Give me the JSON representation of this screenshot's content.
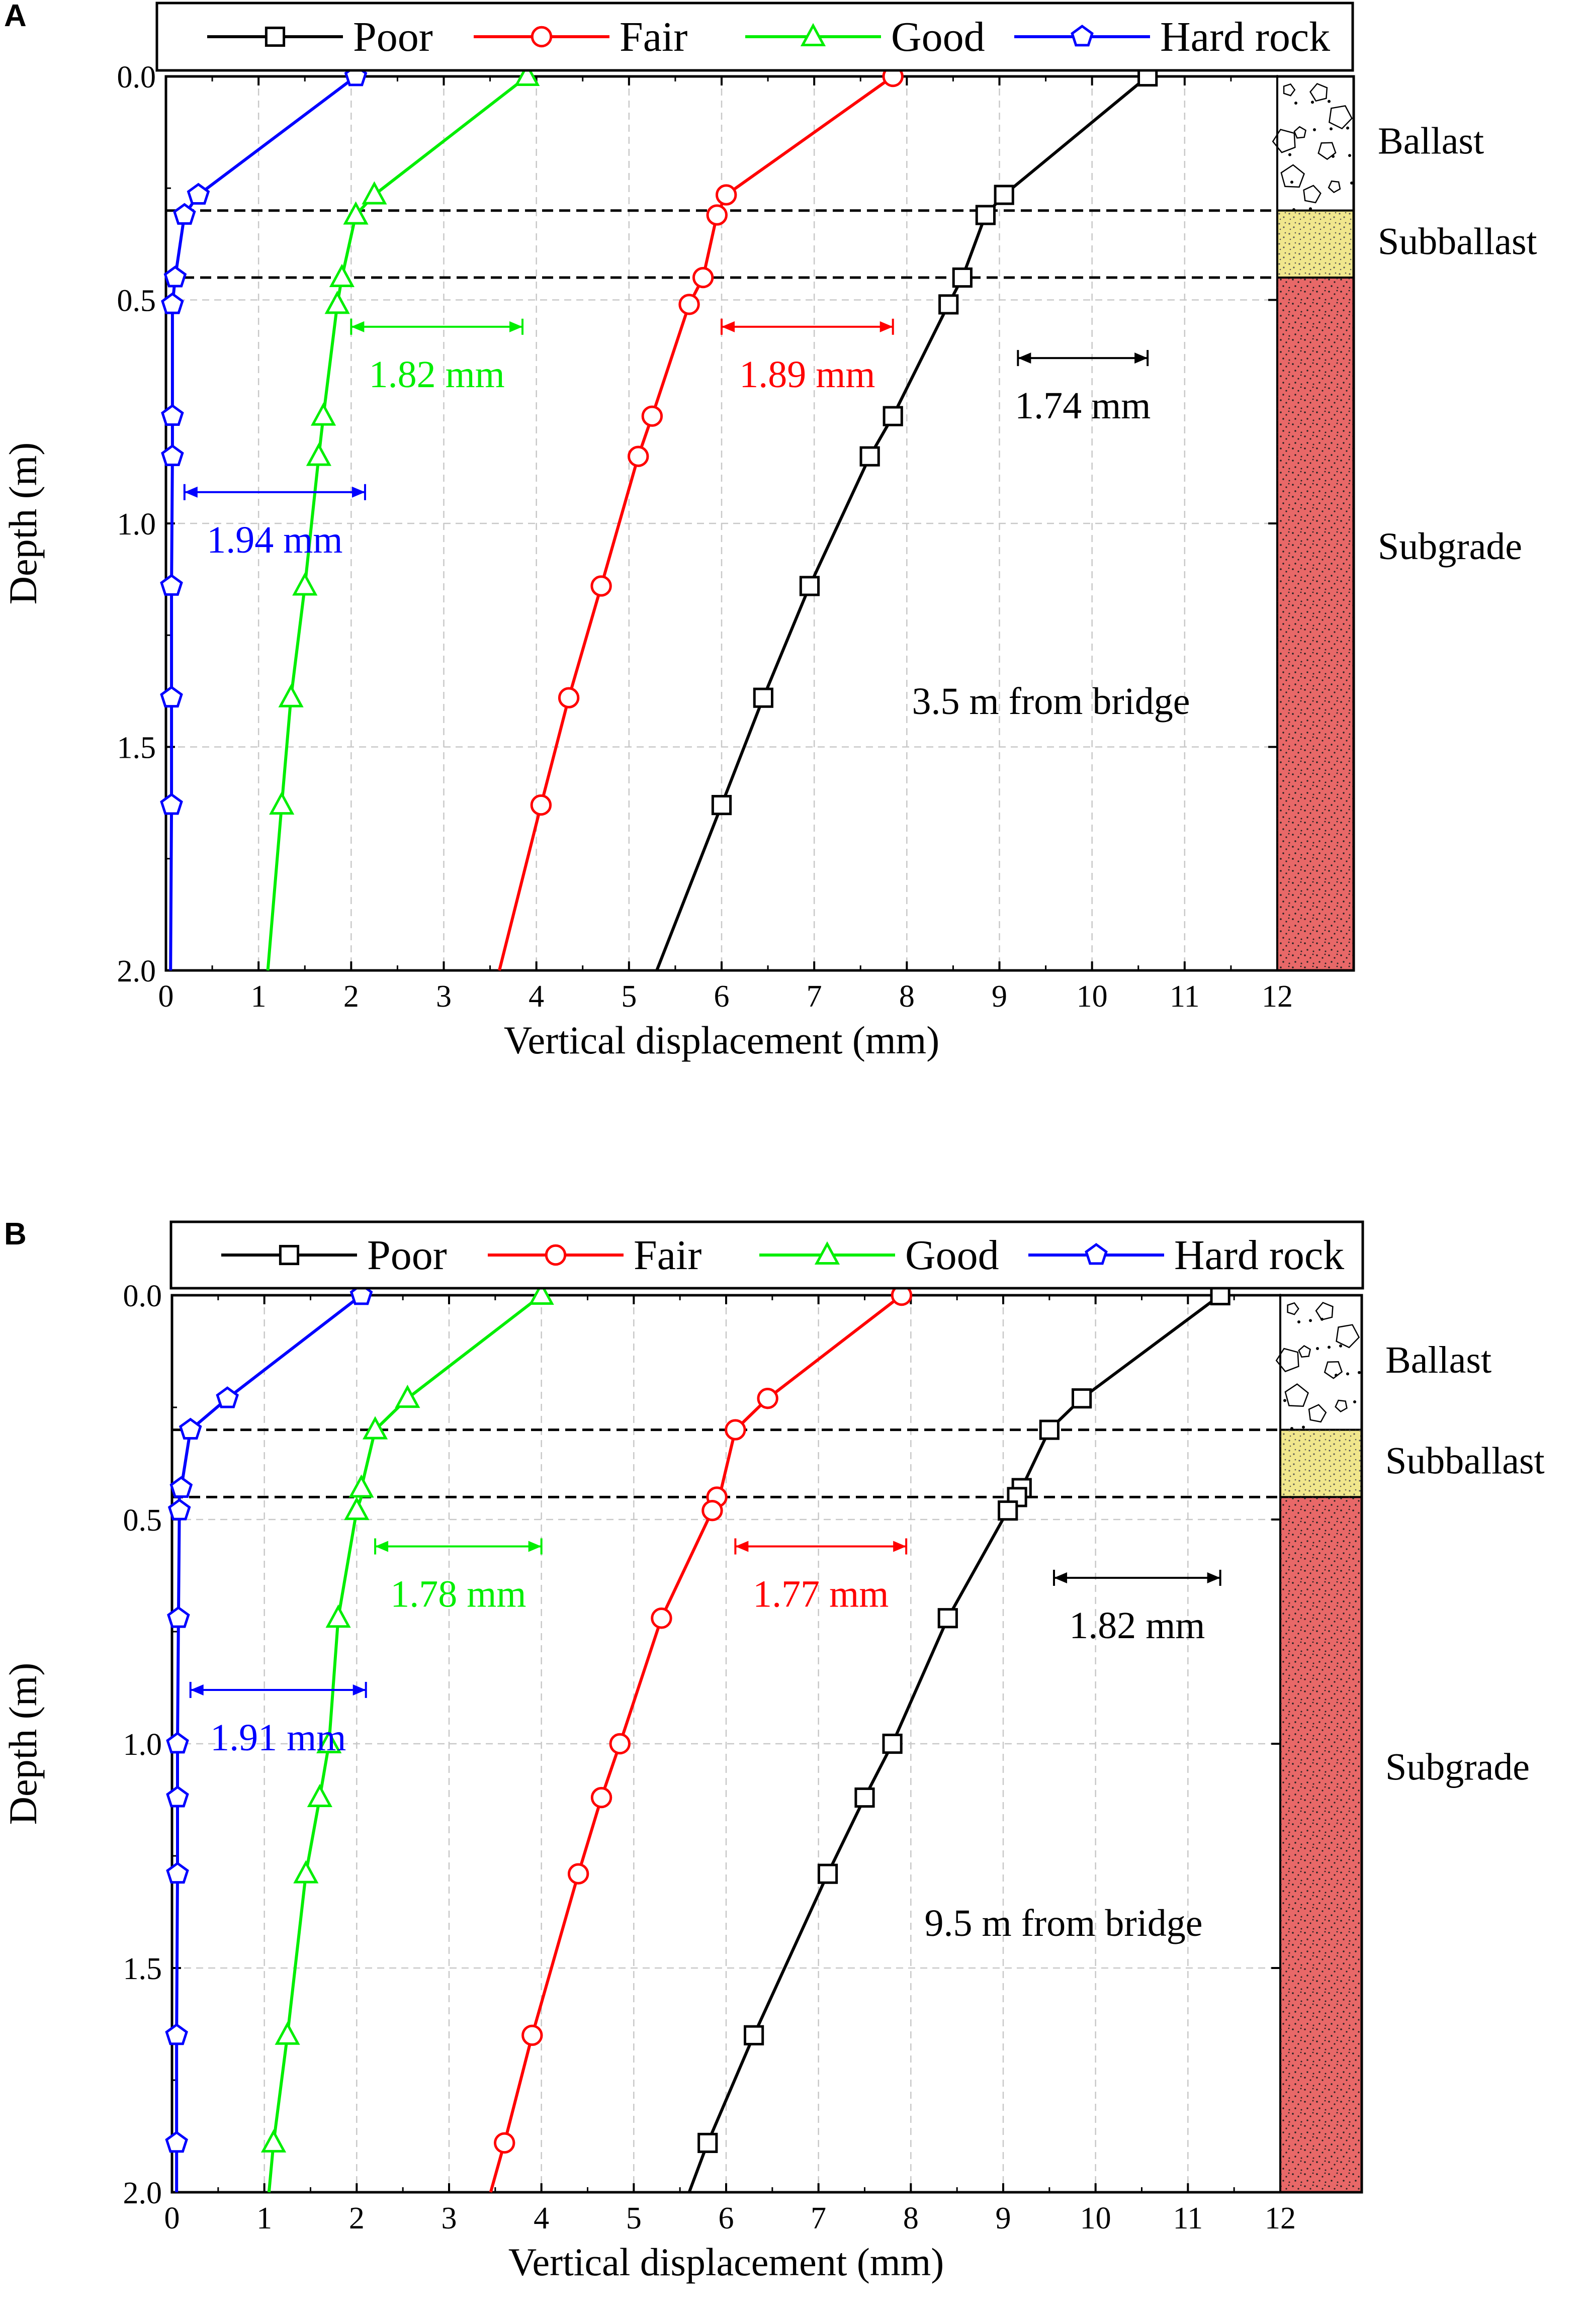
{
  "chart_data": [
    {
      "panel": "A",
      "type": "line",
      "xlabel": "Vertical displacement (mm)",
      "ylabel": "Depth (m)",
      "xlim": [
        0,
        12
      ],
      "ylim": [
        2.0,
        0.0
      ],
      "xticks": [
        "0",
        "1",
        "2",
        "3",
        "4",
        "5",
        "6",
        "7",
        "8",
        "9",
        "10",
        "11",
        "12"
      ],
      "yticks": [
        "0.0",
        "0.5",
        "1.0",
        "1.5",
        "2.0"
      ],
      "grid": true,
      "legend_position": "top",
      "annotation": "3.5 m from bridge",
      "layer_boundaries": [
        0.3,
        0.45
      ],
      "layers": [
        {
          "name": "Ballast",
          "top": 0.0,
          "bottom": 0.3,
          "color": "#ffffff"
        },
        {
          "name": "Subballast",
          "top": 0.3,
          "bottom": 0.45,
          "color": "#f0e68c"
        },
        {
          "name": "Subgrade",
          "top": 0.45,
          "bottom": 2.0,
          "color": "#e86868"
        }
      ],
      "series": [
        {
          "name": "Poor",
          "color": "#000000",
          "marker": "square",
          "x": [
            10.6,
            9.05,
            8.85,
            8.6,
            8.45,
            7.85,
            7.6,
            6.95,
            6.45,
            6.0,
            5.3
          ],
          "y": [
            0.0,
            0.265,
            0.31,
            0.45,
            0.51,
            0.76,
            0.85,
            1.14,
            1.39,
            1.63,
            2.0
          ],
          "marked": [
            true,
            true,
            true,
            true,
            true,
            true,
            true,
            true,
            true,
            true,
            false
          ]
        },
        {
          "name": "Fair",
          "color": "#ff0000",
          "marker": "circle",
          "x": [
            7.85,
            6.05,
            5.95,
            5.8,
            5.65,
            5.25,
            5.1,
            4.7,
            4.35,
            4.05,
            3.6
          ],
          "y": [
            0.0,
            0.265,
            0.31,
            0.45,
            0.51,
            0.76,
            0.85,
            1.14,
            1.39,
            1.63,
            2.0
          ],
          "marked": [
            true,
            true,
            true,
            true,
            true,
            true,
            true,
            true,
            true,
            true,
            false
          ]
        },
        {
          "name": "Good",
          "color": "#00ee00",
          "marker": "triangle",
          "x": [
            3.9,
            2.25,
            2.05,
            1.9,
            1.85,
            1.7,
            1.65,
            1.5,
            1.35,
            1.25,
            1.1
          ],
          "y": [
            0.0,
            0.265,
            0.31,
            0.45,
            0.51,
            0.76,
            0.85,
            1.14,
            1.39,
            1.63,
            2.0
          ],
          "marked": [
            true,
            true,
            true,
            true,
            true,
            true,
            true,
            true,
            true,
            true,
            false
          ]
        },
        {
          "name": "Hard rock",
          "color": "#0000ff",
          "marker": "pentagon",
          "x": [
            2.05,
            0.35,
            0.2,
            0.1,
            0.07,
            0.07,
            0.07,
            0.06,
            0.06,
            0.06,
            0.05
          ],
          "y": [
            0.0,
            0.265,
            0.31,
            0.45,
            0.51,
            0.76,
            0.85,
            1.14,
            1.39,
            1.63,
            2.0
          ],
          "marked": [
            true,
            true,
            true,
            true,
            true,
            true,
            true,
            true,
            true,
            true,
            false
          ]
        }
      ],
      "dimension_arrows": [
        {
          "label": "1.82 mm",
          "x1": 2.0,
          "x2": 3.85,
          "y": 0.56,
          "color": "#00ee00"
        },
        {
          "label": "1.89 mm",
          "x1": 6.0,
          "x2": 7.85,
          "y": 0.56,
          "color": "#ff0000"
        },
        {
          "label": "1.74 mm",
          "x1": 9.2,
          "x2": 10.6,
          "y": 0.63,
          "color": "#000000"
        },
        {
          "label": "1.94 mm",
          "x1": 0.2,
          "x2": 2.15,
          "y": 0.93,
          "color": "#0000ff"
        }
      ]
    },
    {
      "panel": "B",
      "type": "line",
      "xlabel": "Vertical displacement (mm)",
      "ylabel": "Depth (m)",
      "xlim": [
        0,
        12
      ],
      "ylim": [
        2.0,
        0.0
      ],
      "xticks": [
        "0",
        "1",
        "2",
        "3",
        "4",
        "5",
        "6",
        "7",
        "8",
        "9",
        "10",
        "11",
        "12"
      ],
      "yticks": [
        "0.0",
        "0.5",
        "1.0",
        "1.5",
        "2.0"
      ],
      "grid": true,
      "legend_position": "top",
      "annotation": "9.5 m from bridge",
      "layer_boundaries": [
        0.3,
        0.45
      ],
      "layers": [
        {
          "name": "Ballast",
          "top": 0.0,
          "bottom": 0.3,
          "color": "#ffffff"
        },
        {
          "name": "Subballast",
          "top": 0.3,
          "bottom": 0.45,
          "color": "#f0e68c"
        },
        {
          "name": "Subgrade",
          "top": 0.45,
          "bottom": 2.0,
          "color": "#e86868"
        }
      ],
      "series": [
        {
          "name": "Poor",
          "color": "#000000",
          "marker": "square",
          "x": [
            11.35,
            9.85,
            9.5,
            9.2,
            9.15,
            9.05,
            8.4,
            7.8,
            7.5,
            7.1,
            6.3,
            5.8,
            5.6
          ],
          "y": [
            0.0,
            0.23,
            0.3,
            0.43,
            0.45,
            0.48,
            0.72,
            1.0,
            1.12,
            1.29,
            1.65,
            1.89,
            2.0
          ],
          "marked": [
            true,
            true,
            true,
            true,
            true,
            true,
            true,
            true,
            true,
            true,
            true,
            true,
            false
          ]
        },
        {
          "name": "Fair",
          "color": "#ff0000",
          "marker": "circle",
          "x": [
            7.9,
            6.45,
            6.1,
            5.95,
            5.9,
            5.85,
            5.3,
            4.85,
            4.65,
            4.4,
            3.9,
            3.6,
            3.45
          ],
          "y": [
            0.0,
            0.23,
            0.3,
            0.43,
            0.45,
            0.48,
            0.72,
            1.0,
            1.12,
            1.29,
            1.65,
            1.89,
            2.0
          ],
          "marked": [
            true,
            true,
            true,
            false,
            true,
            true,
            true,
            true,
            true,
            true,
            true,
            true,
            false
          ]
        },
        {
          "name": "Good",
          "color": "#00ee00",
          "marker": "triangle",
          "x": [
            4.0,
            2.55,
            2.2,
            2.05,
            2.05,
            2.0,
            1.8,
            1.7,
            1.6,
            1.45,
            1.25,
            1.1,
            1.05
          ],
          "y": [
            0.0,
            0.23,
            0.3,
            0.43,
            0.45,
            0.48,
            0.72,
            1.0,
            1.12,
            1.29,
            1.65,
            1.89,
            2.0
          ],
          "marked": [
            true,
            true,
            true,
            true,
            false,
            true,
            true,
            true,
            true,
            true,
            true,
            true,
            false
          ]
        },
        {
          "name": "Hard rock",
          "color": "#0000ff",
          "marker": "pentagon",
          "x": [
            2.05,
            0.6,
            0.2,
            0.1,
            0.08,
            0.08,
            0.07,
            0.06,
            0.06,
            0.06,
            0.05,
            0.05,
            0.05
          ],
          "y": [
            0.0,
            0.23,
            0.3,
            0.43,
            0.45,
            0.48,
            0.72,
            1.0,
            1.12,
            1.29,
            1.65,
            1.89,
            2.0
          ],
          "marked": [
            true,
            true,
            true,
            true,
            false,
            true,
            true,
            true,
            true,
            true,
            true,
            true,
            false
          ]
        }
      ],
      "dimension_arrows": [
        {
          "label": "1.78 mm",
          "x1": 2.2,
          "x2": 4.0,
          "y": 0.56,
          "color": "#00ee00"
        },
        {
          "label": "1.77 mm",
          "x1": 6.1,
          "x2": 7.95,
          "y": 0.56,
          "color": "#ff0000"
        },
        {
          "label": "1.82 mm",
          "x1": 9.55,
          "x2": 11.35,
          "y": 0.63,
          "color": "#000000"
        },
        {
          "label": "1.91 mm",
          "x1": 0.2,
          "x2": 2.1,
          "y": 0.88,
          "color": "#0000ff"
        }
      ]
    }
  ]
}
